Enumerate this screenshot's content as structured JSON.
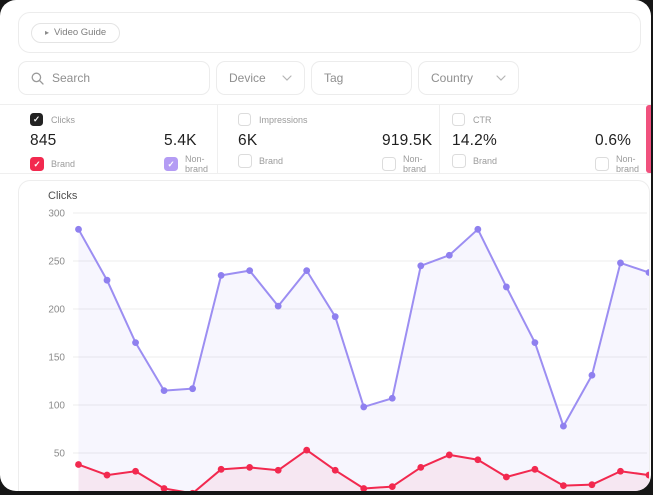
{
  "ui": {
    "background": "#161616",
    "icons": {
      "play": "▸",
      "check": "✓",
      "chevron": "∨",
      "search": "magnifier"
    },
    "metrics_scroll_accent_color": "#f1517e"
  },
  "video_guide": {
    "label": "Video Guide"
  },
  "filters": {
    "search": {
      "placeholder": "Search"
    },
    "device": {
      "label": "Device"
    },
    "tag": {
      "placeholder": "Tag"
    },
    "country": {
      "label": "Country"
    }
  },
  "metrics": [
    {
      "name": "Clicks",
      "checked": true,
      "accent": "#222222",
      "brand_value": "845",
      "nonbrand_value": "5.4K",
      "brand": {
        "label": "Brand",
        "checked": true,
        "color": "#f2294f"
      },
      "nonbrand": {
        "label": "Non-brand",
        "checked": true,
        "color": "#b49cf4"
      }
    },
    {
      "name": "Impressions",
      "checked": false,
      "accent": "#222222",
      "brand_value": "6K",
      "nonbrand_value": "919.5K",
      "brand": {
        "label": "Brand",
        "checked": false,
        "color": "#f2294f"
      },
      "nonbrand": {
        "label": "Non-brand",
        "checked": false,
        "color": "#b49cf4"
      }
    },
    {
      "name": "CTR",
      "checked": false,
      "accent": "#222222",
      "brand_value": "14.2%",
      "nonbrand_value": "0.6%",
      "brand": {
        "label": "Brand",
        "checked": false,
        "color": "#f2294f"
      },
      "nonbrand": {
        "label": "Non-brand",
        "checked": false,
        "color": "#b49cf4"
      }
    }
  ],
  "chart_data": {
    "type": "line",
    "title": "Clicks",
    "xlabel": "",
    "ylabel": "",
    "ylim": [
      0,
      300
    ],
    "y_ticks": [
      300,
      250,
      200,
      150,
      100,
      50
    ],
    "grid": true,
    "x_labels_visible": false,
    "points_per_series": 21,
    "series": [
      {
        "name": "Non-brand",
        "color": "#9c8ef2",
        "point_color": "#8f80ef",
        "fill": "rgba(143,128,239,0.07)",
        "values": [
          283,
          230,
          165,
          115,
          117,
          235,
          240,
          203,
          240,
          192,
          98,
          107,
          245,
          256,
          283,
          223,
          165,
          78,
          131,
          248,
          238
        ]
      },
      {
        "name": "Brand",
        "color": "#f2294f",
        "point_color": "#f2294f",
        "fill": "rgba(242,41,79,0.07)",
        "values": [
          38,
          27,
          31,
          13,
          8,
          33,
          35,
          32,
          53,
          32,
          13,
          15,
          35,
          48,
          43,
          25,
          33,
          16,
          17,
          31,
          27
        ]
      }
    ]
  }
}
